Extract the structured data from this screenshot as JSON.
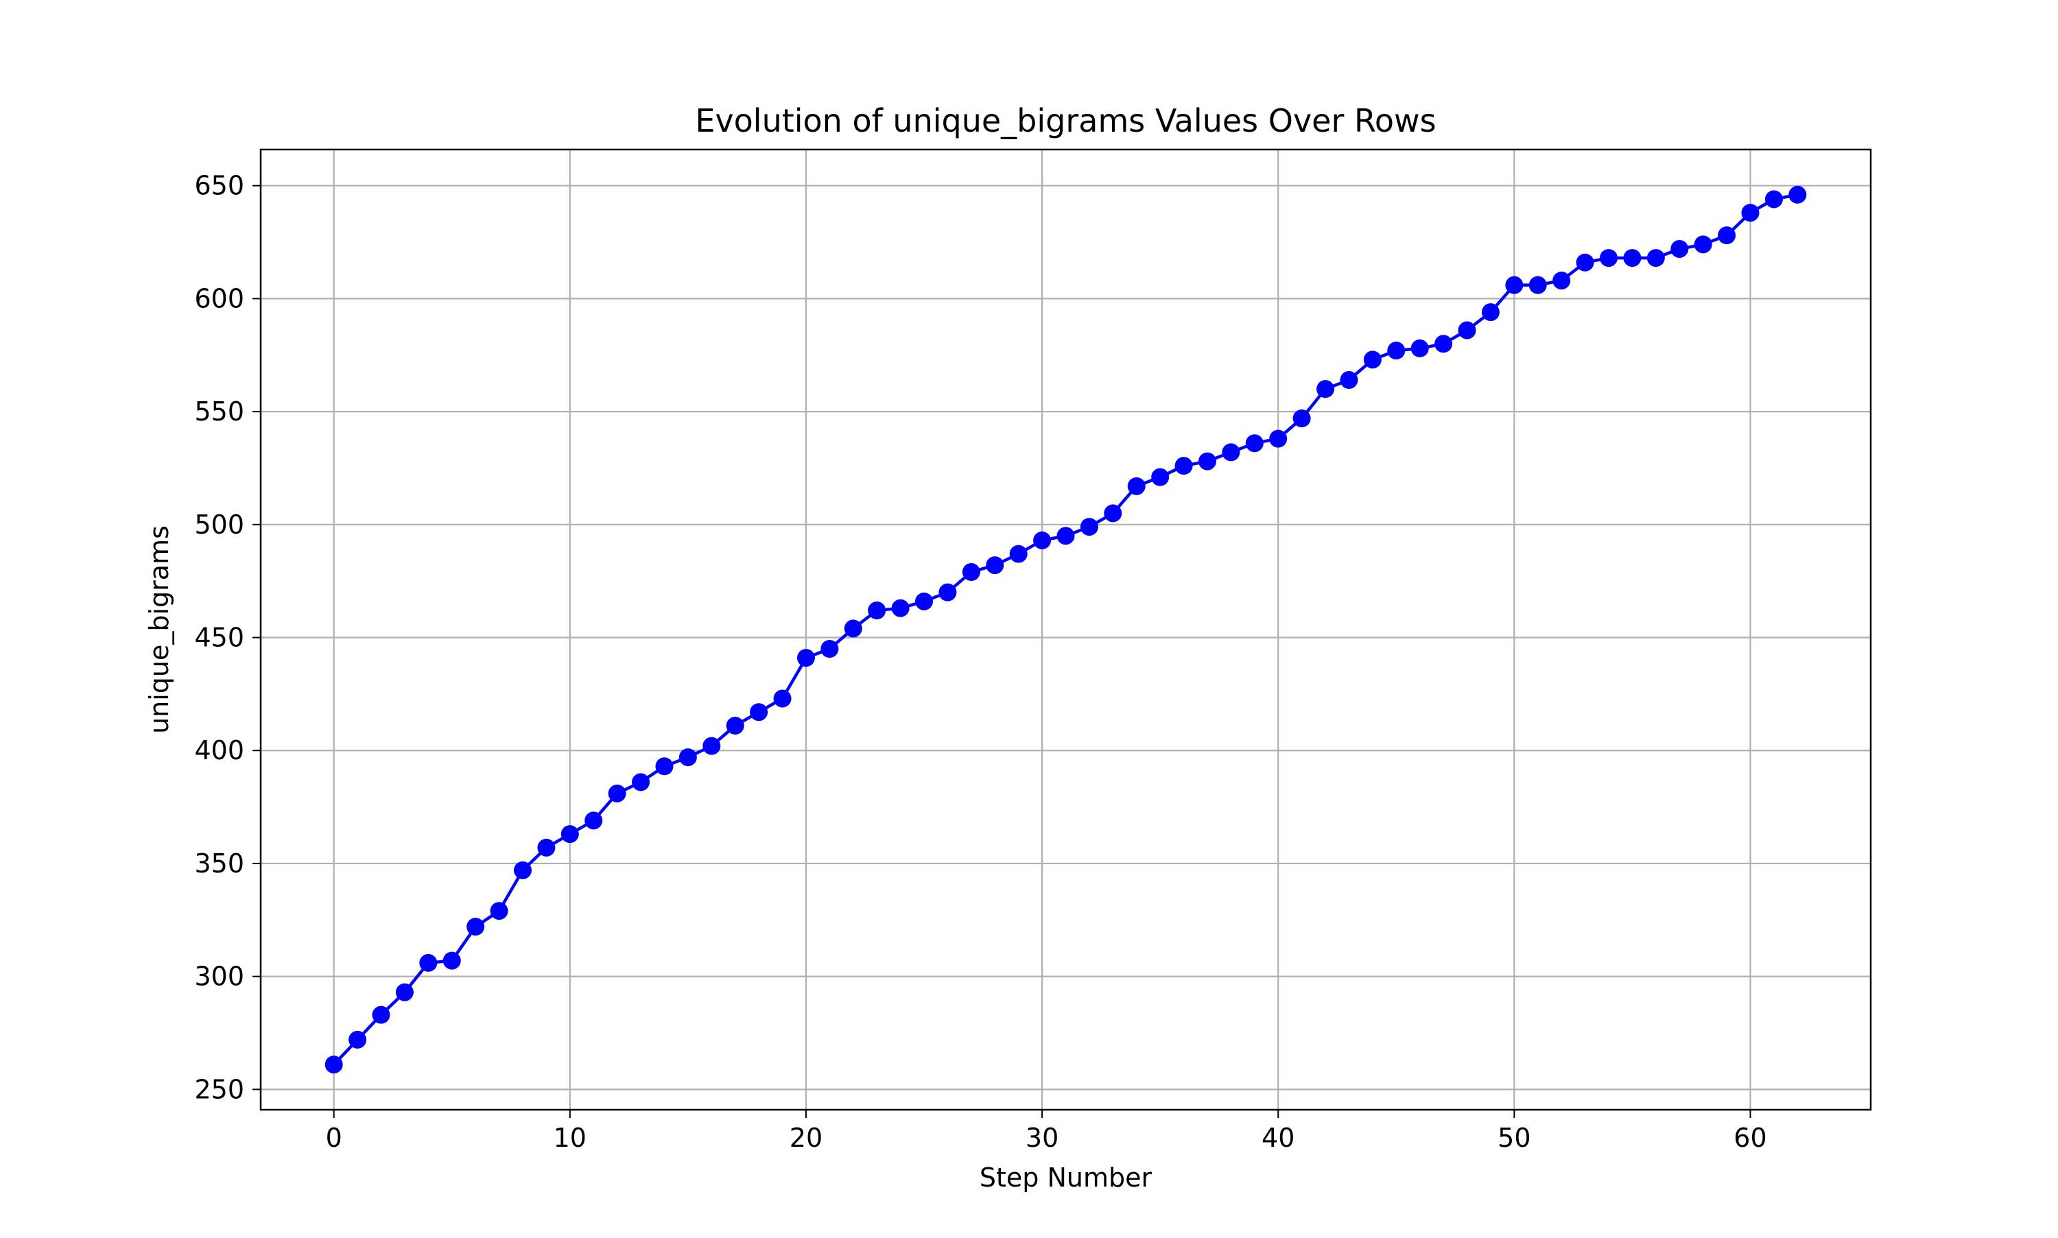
{
  "chart_data": {
    "type": "line",
    "title": "Evolution of unique_bigrams Values Over Rows",
    "xlabel": "Step Number",
    "ylabel": "unique_bigrams",
    "xlim": [
      -3.1,
      65.1
    ],
    "ylim": [
      241,
      666
    ],
    "xticks": [
      0,
      10,
      20,
      30,
      40,
      50,
      60
    ],
    "yticks": [
      250,
      300,
      350,
      400,
      450,
      500,
      550,
      600,
      650
    ],
    "grid": true,
    "line_color": "#0000ff",
    "marker": "circle",
    "x": [
      0,
      1,
      2,
      3,
      4,
      5,
      6,
      7,
      8,
      9,
      10,
      11,
      12,
      13,
      14,
      15,
      16,
      17,
      18,
      19,
      20,
      21,
      22,
      23,
      24,
      25,
      26,
      27,
      28,
      29,
      30,
      31,
      32,
      33,
      34,
      35,
      36,
      37,
      38,
      39,
      40,
      41,
      42,
      43,
      44,
      45,
      46,
      47,
      48,
      49,
      50,
      51,
      52,
      53,
      54,
      55,
      56,
      57,
      58,
      59,
      60,
      61,
      62
    ],
    "series": [
      {
        "values": [
          261,
          272,
          283,
          293,
          306,
          307,
          322,
          329,
          347,
          357,
          363,
          369,
          381,
          386,
          393,
          397,
          402,
          411,
          417,
          423,
          441,
          445,
          454,
          462,
          463,
          466,
          470,
          479,
          482,
          487,
          493,
          495,
          499,
          505,
          517,
          521,
          526,
          528,
          532,
          536,
          538,
          547,
          560,
          564,
          573,
          577,
          578,
          580,
          586,
          594,
          606,
          606,
          608,
          616,
          618,
          618,
          618,
          622,
          624,
          628,
          638,
          644,
          646
        ]
      }
    ]
  }
}
